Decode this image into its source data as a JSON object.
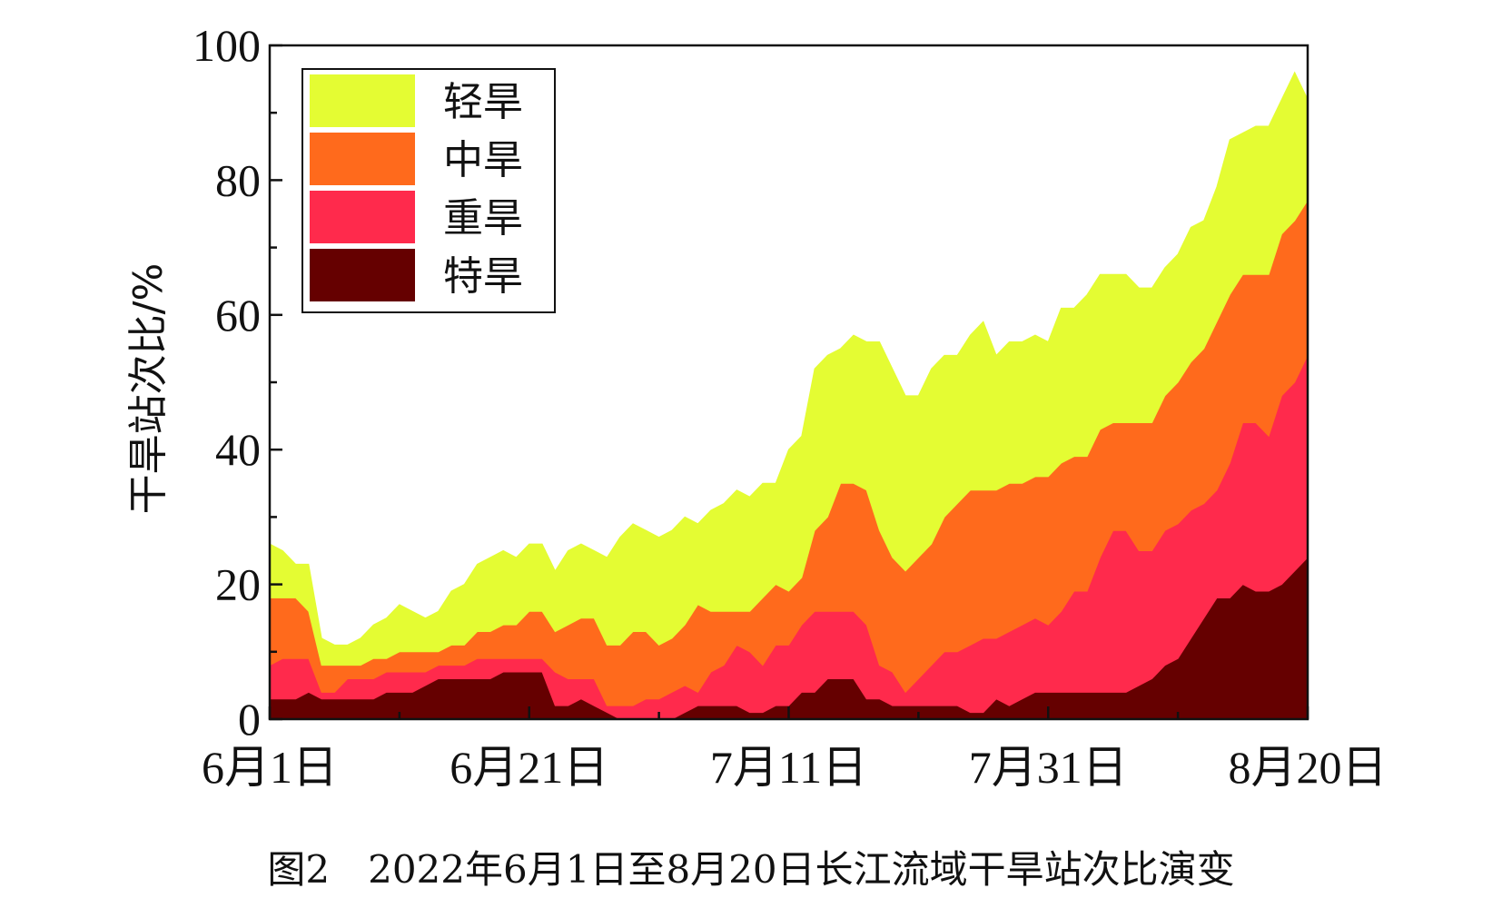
{
  "chart_data": {
    "type": "area",
    "stacked": true,
    "caption": "图2　2022年6月1日至8月20日长江流域干旱站次比演变",
    "ylabel": "干旱站次比/%",
    "xlabel": "",
    "ylim": [
      0,
      100
    ],
    "xlim": [
      0,
      80
    ],
    "y_ticks": [
      0,
      20,
      40,
      60,
      80,
      100
    ],
    "y_tick_labels": [
      "0",
      "20",
      "40",
      "60",
      "80",
      "100"
    ],
    "x_ticks": [
      0,
      20,
      40,
      60,
      80
    ],
    "x_tick_labels": [
      "6月1日",
      "6月21日",
      "7月11日",
      "7月31日",
      "8月20日"
    ],
    "legend_position": "top-left",
    "grid": false,
    "series": [
      {
        "name": "特旱",
        "color": "#650000",
        "values": [
          3,
          3,
          3,
          4,
          3,
          3,
          3,
          3,
          3,
          4,
          4,
          4,
          5,
          6,
          6,
          6,
          6,
          6,
          7,
          7,
          7,
          7,
          2,
          2,
          3,
          2,
          1,
          0,
          0,
          0,
          0,
          0,
          1,
          2,
          2,
          2,
          2,
          1,
          1,
          2,
          2,
          4,
          4,
          6,
          6,
          6,
          3,
          3,
          2,
          2,
          2,
          2,
          2,
          2,
          1,
          1,
          3,
          2,
          3,
          4,
          4,
          4,
          4,
          4,
          4,
          4,
          4,
          5,
          6,
          8,
          9,
          12,
          15,
          18,
          18,
          20,
          19,
          19,
          20,
          22,
          24
        ]
      },
      {
        "name": "重旱",
        "color": "#ff2a4c",
        "values": [
          5,
          6,
          6,
          5,
          1,
          1,
          3,
          3,
          3,
          3,
          3,
          3,
          2,
          2,
          2,
          2,
          3,
          3,
          2,
          2,
          2,
          2,
          5,
          4,
          3,
          4,
          1,
          2,
          2,
          3,
          3,
          4,
          4,
          2,
          5,
          6,
          9,
          9,
          7,
          9,
          9,
          10,
          12,
          10,
          10,
          10,
          11,
          5,
          5,
          2,
          4,
          6,
          8,
          8,
          10,
          11,
          9,
          11,
          11,
          11,
          10,
          12,
          15,
          15,
          20,
          24,
          24,
          20,
          19,
          20,
          20,
          19,
          17,
          16,
          20,
          24,
          25,
          23,
          28,
          28,
          30
        ]
      },
      {
        "name": "中旱",
        "color": "#ff6a1c",
        "values": [
          10,
          9,
          9,
          7,
          4,
          4,
          2,
          2,
          3,
          2,
          3,
          3,
          3,
          2,
          3,
          3,
          4,
          4,
          5,
          5,
          7,
          7,
          6,
          8,
          9,
          9,
          9,
          9,
          11,
          10,
          8,
          8,
          9,
          13,
          9,
          8,
          5,
          6,
          10,
          9,
          8,
          7,
          12,
          14,
          19,
          19,
          20,
          20,
          17,
          18,
          18,
          18,
          20,
          22,
          23,
          22,
          22,
          22,
          21,
          21,
          22,
          22,
          20,
          20,
          19,
          16,
          16,
          19,
          19,
          20,
          21,
          22,
          23,
          25,
          25,
          22,
          22,
          24,
          24,
          24,
          23
        ]
      },
      {
        "name": "轻旱",
        "color": "#e4fc33",
        "values": [
          8,
          7,
          5,
          7,
          4,
          3,
          3,
          4,
          5,
          6,
          7,
          6,
          5,
          6,
          8,
          9,
          10,
          11,
          11,
          10,
          10,
          10,
          9,
          11,
          11,
          10,
          13,
          16,
          16,
          15,
          16,
          16,
          16,
          12,
          15,
          16,
          18,
          17,
          17,
          15,
          21,
          21,
          24,
          24,
          20,
          22,
          22,
          28,
          28,
          26,
          24,
          26,
          24,
          22,
          23,
          25,
          20,
          21,
          21,
          21,
          20,
          23,
          22,
          24,
          23,
          22,
          22,
          20,
          20,
          19,
          19,
          20,
          19,
          20,
          23,
          21,
          22,
          22,
          20,
          22,
          15
        ]
      }
    ]
  }
}
